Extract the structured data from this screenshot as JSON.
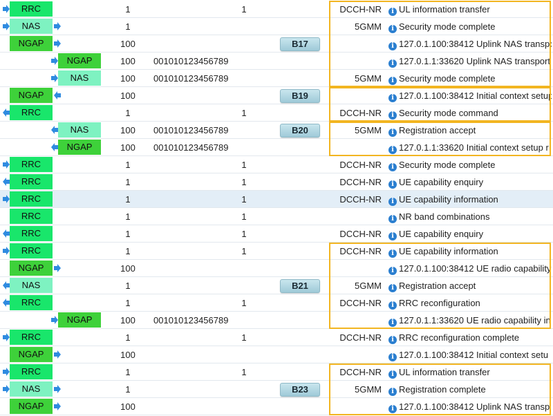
{
  "colors": {
    "RRC": "#19e66b",
    "NAS": "#7ef2c1",
    "NGAP": "#3ed13a",
    "arrow": "#2f8be0",
    "highlight": "#f2b521"
  },
  "rows": [
    {
      "proto": "RRC",
      "col": 1,
      "dir": "in",
      "ue": "1",
      "imsi": "",
      "cell": "1",
      "layer": "DCCH-NR",
      "msg": "UL information transfer"
    },
    {
      "proto": "NAS",
      "col": 1,
      "dir": "in",
      "ue": "1",
      "imsi": "",
      "cell": "",
      "layer": "5GMM",
      "msg": "Security mode complete"
    },
    {
      "proto": "NGAP",
      "col": 1,
      "dir": "out",
      "ue": "100",
      "imsi": "",
      "cell": "",
      "layer": "",
      "msg": "127.0.1.100:38412 Uplink NAS transport"
    },
    {
      "proto": "NGAP",
      "col": 2,
      "dir": "in",
      "ue": "100",
      "imsi": "001010123456789",
      "cell": "",
      "layer": "",
      "msg": "127.0.1.1:33620 Uplink NAS transport"
    },
    {
      "proto": "NAS",
      "col": 2,
      "dir": "in",
      "ue": "100",
      "imsi": "001010123456789",
      "cell": "",
      "layer": "5GMM",
      "msg": "Security mode complete"
    },
    {
      "proto": "NGAP",
      "col": 1,
      "dir": "in",
      "ue": "100",
      "imsi": "",
      "cell": "",
      "layer": "",
      "msg": "127.0.1.100:38412 Initial context setup"
    },
    {
      "proto": "RRC",
      "col": 1,
      "dir": "out",
      "ue": "1",
      "imsi": "",
      "cell": "1",
      "layer": "DCCH-NR",
      "msg": "Security mode command"
    },
    {
      "proto": "NAS",
      "col": 2,
      "dir": "out",
      "ue": "100",
      "imsi": "001010123456789",
      "cell": "",
      "layer": "5GMM",
      "msg": "Registration accept"
    },
    {
      "proto": "NGAP",
      "col": 2,
      "dir": "out",
      "ue": "100",
      "imsi": "001010123456789",
      "cell": "",
      "layer": "",
      "msg": "127.0.1.1:33620 Initial context setup r"
    },
    {
      "proto": "RRC",
      "col": 1,
      "dir": "in",
      "ue": "1",
      "imsi": "",
      "cell": "1",
      "layer": "DCCH-NR",
      "msg": "Security mode complete"
    },
    {
      "proto": "RRC",
      "col": 1,
      "dir": "out",
      "ue": "1",
      "imsi": "",
      "cell": "1",
      "layer": "DCCH-NR",
      "msg": "UE capability enquiry"
    },
    {
      "proto": "RRC",
      "col": 1,
      "dir": "in",
      "ue": "1",
      "imsi": "",
      "cell": "1",
      "layer": "DCCH-NR",
      "msg": "UE capability information",
      "selected": true
    },
    {
      "proto": "RRC",
      "col": 1,
      "dir": "none",
      "ue": "1",
      "imsi": "",
      "cell": "1",
      "layer": "",
      "msg": "NR band combinations"
    },
    {
      "proto": "RRC",
      "col": 1,
      "dir": "out",
      "ue": "1",
      "imsi": "",
      "cell": "1",
      "layer": "DCCH-NR",
      "msg": "UE capability enquiry"
    },
    {
      "proto": "RRC",
      "col": 1,
      "dir": "in",
      "ue": "1",
      "imsi": "",
      "cell": "1",
      "layer": "DCCH-NR",
      "msg": "UE capability information"
    },
    {
      "proto": "NGAP",
      "col": 1,
      "dir": "out",
      "ue": "100",
      "imsi": "",
      "cell": "",
      "layer": "",
      "msg": "127.0.1.100:38412 UE radio capability"
    },
    {
      "proto": "NAS",
      "col": 1,
      "dir": "out",
      "ue": "1",
      "imsi": "",
      "cell": "",
      "layer": "5GMM",
      "msg": "Registration accept"
    },
    {
      "proto": "RRC",
      "col": 1,
      "dir": "out",
      "ue": "1",
      "imsi": "",
      "cell": "1",
      "layer": "DCCH-NR",
      "msg": "RRC reconfiguration"
    },
    {
      "proto": "NGAP",
      "col": 2,
      "dir": "in",
      "ue": "100",
      "imsi": "001010123456789",
      "cell": "",
      "layer": "",
      "msg": "127.0.1.1:33620 UE radio capability in"
    },
    {
      "proto": "RRC",
      "col": 1,
      "dir": "in",
      "ue": "1",
      "imsi": "",
      "cell": "1",
      "layer": "DCCH-NR",
      "msg": "RRC reconfiguration complete"
    },
    {
      "proto": "NGAP",
      "col": 1,
      "dir": "out",
      "ue": "100",
      "imsi": "",
      "cell": "",
      "layer": "",
      "msg": "127.0.1.100:38412 Initial context setu"
    },
    {
      "proto": "RRC",
      "col": 1,
      "dir": "in",
      "ue": "1",
      "imsi": "",
      "cell": "1",
      "layer": "DCCH-NR",
      "msg": "UL information transfer"
    },
    {
      "proto": "NAS",
      "col": 1,
      "dir": "in",
      "ue": "1",
      "imsi": "",
      "cell": "",
      "layer": "5GMM",
      "msg": "Registration complete"
    },
    {
      "proto": "NGAP",
      "col": 1,
      "dir": "out",
      "ue": "100",
      "imsi": "",
      "cell": "",
      "layer": "",
      "msg": "127.0.1.100:38412 Uplink NAS transp"
    }
  ],
  "groups": [
    {
      "label": "B17",
      "first": 0,
      "last": 4,
      "tag_row": 2
    },
    {
      "label": "B19",
      "first": 5,
      "last": 6,
      "tag_row": 5
    },
    {
      "label": "B20",
      "first": 7,
      "last": 8,
      "tag_row": 7
    },
    {
      "label": "B21",
      "first": 14,
      "last": 18,
      "tag_row": 16
    },
    {
      "label": "B23",
      "first": 21,
      "last": 23,
      "tag_row": 22
    }
  ]
}
